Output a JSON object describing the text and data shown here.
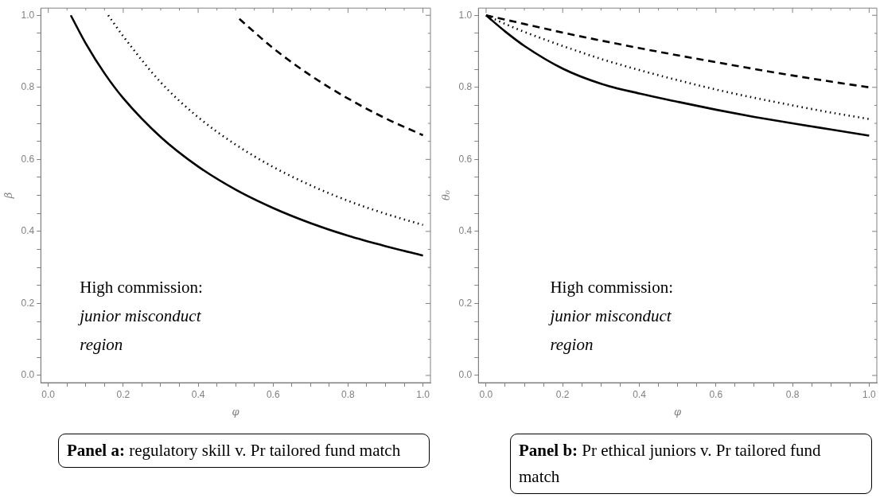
{
  "chart_data": [
    {
      "type": "line",
      "title": "Panel a:",
      "subtitle": "regulatory skill v. Pr tailored fund match",
      "xlabel": "φ",
      "ylabel": "β",
      "xlim": [
        -0.02,
        1.02
      ],
      "ylim": [
        -0.02,
        1.02
      ],
      "xticks": [
        {
          "value": 0,
          "label": "0.0"
        },
        {
          "value": 0.05,
          "label": null
        },
        {
          "value": 0.1,
          "label": null
        },
        {
          "value": 0.15,
          "label": null
        },
        0.2,
        {
          "value": 0.25,
          "label": null
        },
        {
          "value": 0.3,
          "label": null
        },
        {
          "value": 0.35,
          "label": null
        },
        0.4,
        {
          "value": 0.45,
          "label": null
        },
        {
          "value": 0.5,
          "label": null
        },
        {
          "value": 0.55,
          "label": null
        },
        0.6,
        {
          "value": 0.65,
          "label": null
        },
        {
          "value": 0.7,
          "label": null
        },
        {
          "value": 0.75,
          "label": null
        },
        0.8,
        {
          "value": 0.85,
          "label": null
        },
        {
          "value": 0.9,
          "label": null
        },
        {
          "value": 0.95,
          "label": null
        },
        {
          "value": 1,
          "label": "1.0"
        }
      ],
      "yticks": [
        {
          "value": 0,
          "label": "0.0"
        },
        {
          "value": 0.05,
          "label": null
        },
        {
          "value": 0.1,
          "label": null
        },
        {
          "value": 0.15,
          "label": null
        },
        0.2,
        {
          "value": 0.25,
          "label": null
        },
        {
          "value": 0.3,
          "label": null
        },
        {
          "value": 0.35,
          "label": null
        },
        0.4,
        {
          "value": 0.45,
          "label": null
        },
        {
          "value": 0.5,
          "label": null
        },
        {
          "value": 0.55,
          "label": null
        },
        0.6,
        {
          "value": 0.65,
          "label": null
        },
        {
          "value": 0.7,
          "label": null
        },
        {
          "value": 0.75,
          "label": null
        },
        0.8,
        {
          "value": 0.85,
          "label": null
        },
        {
          "value": 0.9,
          "label": null
        },
        {
          "value": 0.95,
          "label": null
        },
        {
          "value": 1,
          "label": "1.0"
        }
      ],
      "series": [
        {
          "color": "#000000",
          "line_style": "solid",
          "x": [
            0.06,
            0.1,
            0.15,
            0.2,
            0.3,
            0.4,
            0.5,
            0.6,
            0.7,
            0.8,
            0.9,
            1.0
          ],
          "values": [
            1.0,
            0.922,
            0.839,
            0.77,
            0.662,
            0.58,
            0.516,
            0.465,
            0.423,
            0.388,
            0.359,
            0.333
          ]
        },
        {
          "color": "#000000",
          "line_style": "dotted",
          "x": [
            0.16,
            0.2,
            0.3,
            0.4,
            0.5,
            0.6,
            0.7,
            0.8,
            0.9,
            1.0
          ],
          "values": [
            1.0,
            0.942,
            0.814,
            0.717,
            0.641,
            0.579,
            0.528,
            0.485,
            0.449,
            0.418
          ]
        },
        {
          "color": "#000000",
          "line_style": "dashed",
          "x": [
            0.51,
            0.6,
            0.7,
            0.8,
            0.9,
            1.0
          ],
          "values": [
            0.99,
            0.909,
            0.833,
            0.769,
            0.714,
            0.667
          ]
        }
      ],
      "annotations": [
        "High commission:",
        "junior misconduct region"
      ]
    },
    {
      "type": "line",
      "title": "Panel b:",
      "subtitle": "Pr ethical juniors v. Pr tailored fund match",
      "xlabel": "φ",
      "ylabel": "θ₀",
      "xlim": [
        -0.02,
        1.02
      ],
      "ylim": [
        -0.02,
        1.02
      ],
      "xticks": [
        {
          "value": 0,
          "label": "0.0"
        },
        {
          "value": 0.05,
          "label": null
        },
        {
          "value": 0.1,
          "label": null
        },
        {
          "value": 0.15,
          "label": null
        },
        0.2,
        {
          "value": 0.25,
          "label": null
        },
        {
          "value": 0.3,
          "label": null
        },
        {
          "value": 0.35,
          "label": null
        },
        0.4,
        {
          "value": 0.45,
          "label": null
        },
        {
          "value": 0.5,
          "label": null
        },
        {
          "value": 0.55,
          "label": null
        },
        0.6,
        {
          "value": 0.65,
          "label": null
        },
        {
          "value": 0.7,
          "label": null
        },
        {
          "value": 0.75,
          "label": null
        },
        0.8,
        {
          "value": 0.85,
          "label": null
        },
        {
          "value": 0.9,
          "label": null
        },
        {
          "value": 0.95,
          "label": null
        },
        {
          "value": 1,
          "label": "1.0"
        }
      ],
      "yticks": [
        {
          "value": 0,
          "label": "0.0"
        },
        {
          "value": 0.05,
          "label": null
        },
        {
          "value": 0.1,
          "label": null
        },
        {
          "value": 0.15,
          "label": null
        },
        0.2,
        {
          "value": 0.25,
          "label": null
        },
        {
          "value": 0.3,
          "label": null
        },
        {
          "value": 0.35,
          "label": null
        },
        0.4,
        {
          "value": 0.45,
          "label": null
        },
        {
          "value": 0.5,
          "label": null
        },
        {
          "value": 0.55,
          "label": null
        },
        0.6,
        {
          "value": 0.65,
          "label": null
        },
        {
          "value": 0.7,
          "label": null
        },
        {
          "value": 0.75,
          "label": null
        },
        0.8,
        {
          "value": 0.85,
          "label": null
        },
        {
          "value": 0.9,
          "label": null
        },
        {
          "value": 0.95,
          "label": null
        },
        {
          "value": 1,
          "label": "1.0"
        }
      ],
      "series": [
        {
          "color": "#000000",
          "line_style": "solid",
          "x": [
            0,
            0.05,
            0.1,
            0.2,
            0.3,
            0.4,
            0.5,
            0.6,
            0.7,
            0.8,
            0.9,
            1.0
          ],
          "values": [
            1.0,
            0.955,
            0.915,
            0.852,
            0.81,
            0.783,
            0.76,
            0.738,
            0.718,
            0.7,
            0.683,
            0.666
          ]
        },
        {
          "color": "#000000",
          "line_style": "dotted",
          "x": [
            0,
            0.05,
            0.1,
            0.2,
            0.3,
            0.4,
            0.5,
            0.6,
            0.7,
            0.8,
            0.9,
            1.0
          ],
          "values": [
            1.0,
            0.976,
            0.954,
            0.915,
            0.879,
            0.848,
            0.82,
            0.794,
            0.771,
            0.75,
            0.73,
            0.712
          ]
        },
        {
          "color": "#000000",
          "line_style": "dashed",
          "x": [
            0,
            0.1,
            0.2,
            0.3,
            0.4,
            0.5,
            0.6,
            0.7,
            0.8,
            0.9,
            1.0
          ],
          "values": [
            1.0,
            0.976,
            0.952,
            0.93,
            0.909,
            0.889,
            0.87,
            0.851,
            0.833,
            0.816,
            0.8
          ]
        }
      ],
      "annotations": [
        "High commission:",
        "junior misconduct region"
      ]
    }
  ]
}
